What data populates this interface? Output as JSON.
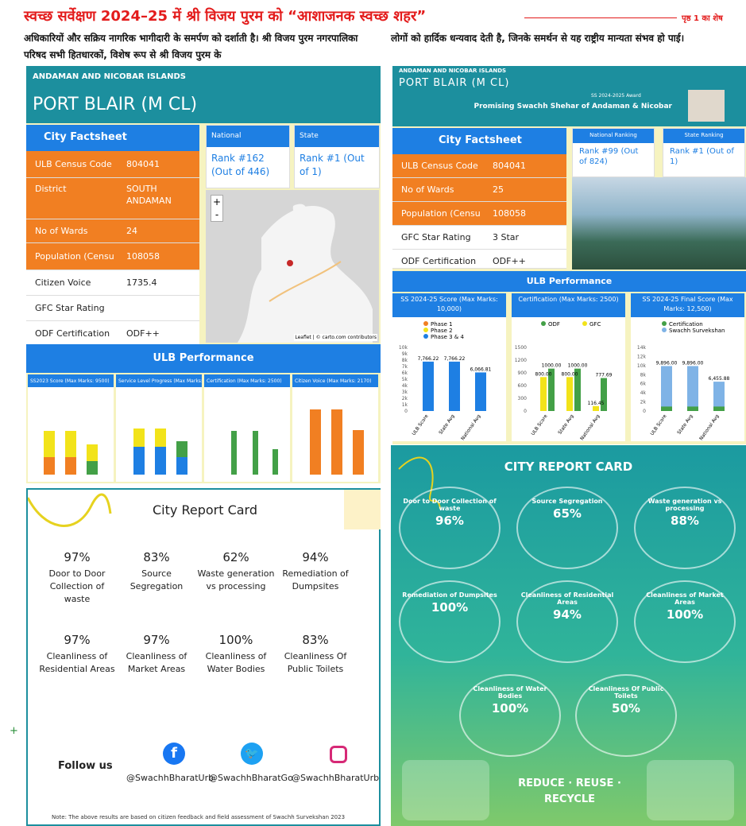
{
  "headline": "स्वच्छ सर्वेक्षण 2024–25 में श्री विजय पुरम को “आशाजनक स्वच्छ शहर”",
  "headline_cont": "पृष्ठ 1 का शेष",
  "col1": "अधिकारियों और सक्रिय नागरिक भागीदारी के समर्पण को दर्शाती है। श्री विजय पुरम नगरपालिका परिषद सभी हितधारकों, विशेष रूप से श्री विजय पुरम के",
  "col2": "लोगों को हार्दिक धन्यवाद देती है, जिनके समर्थन से यह राष्ट्रीय मान्यता संभव हो पाई।",
  "left_card": {
    "state": "ANDAMAN AND NICOBAR ISLANDS",
    "city": "PORT BLAIR (M CL)",
    "factsheet": "City Factsheet",
    "facts": [
      [
        "ULB Census Code",
        "804041"
      ],
      [
        "District",
        "SOUTH ANDAMAN"
      ],
      [
        "No of Wards",
        "24"
      ],
      [
        "Population (Censu",
        "108058"
      ],
      [
        "Citizen Voice",
        "1735.4"
      ],
      [
        "GFC Star Rating",
        ""
      ],
      [
        "ODF Certification",
        "ODF++"
      ]
    ],
    "national_hdr": "National",
    "national_rank": "Rank #162 (Out of 446)",
    "state_hdr": "State",
    "state_rank": "Rank #1 (Out of 1)",
    "map_credit": "Leaflet | © carto.com contributors",
    "ulb": "ULB Performance",
    "mini_titles": [
      "SS2023 Score (Max Marks: 9500)",
      "Service Level Progress (Max Marks: 4830)",
      "Certification (Max Marks: 2500)",
      "Citizen Voice (Max Marks: 2170)"
    ]
  },
  "right_card": {
    "state": "ANDAMAN AND NICOBAR ISLANDS",
    "city": "PORT BLAIR (M CL)",
    "award_small": "SS 2024-2025 Award",
    "award": "Promising Swachh Shehar of Andaman & Nicobar",
    "factsheet": "City Factsheet",
    "facts": [
      [
        "ULB Census Code",
        "804041"
      ],
      [
        "No of Wards",
        "25"
      ],
      [
        "Population (Censu",
        "108058"
      ],
      [
        "GFC Star Rating",
        "3 Star"
      ],
      [
        "ODF Certification",
        "ODF++"
      ]
    ],
    "national_hdr": "National Ranking",
    "national_rank": "Rank #99 (Out of 824)",
    "state_hdr": "State Ranking",
    "state_rank": "Rank #1 (Out of 1)",
    "ulb": "ULB Performance",
    "charts": [
      {
        "title": "SS 2024-25 Score (Max Marks: 10,000)",
        "legend": [
          "Phase 1",
          "Phase 2",
          "Phase 3 & 4"
        ],
        "cats": [
          "ULB Score",
          "State Avg",
          "National Avg"
        ],
        "labels": [
          "7,766.22",
          "7,766.22",
          "6,066.81"
        ],
        "values": [
          7766.22,
          7766.22,
          6066.81
        ],
        "ymax": 10000,
        "yticks": [
          "10k",
          "9k",
          "8k",
          "7k",
          "6k",
          "5k",
          "4k",
          "3k",
          "2k",
          "1k",
          "0"
        ]
      },
      {
        "title": "Certification (Max Marks: 2500)",
        "legend": [
          "ODF",
          "GFC"
        ],
        "cats": [
          "ULB Score",
          "State Avg",
          "National Avg"
        ],
        "labels": [
          "800.00",
          "1000.00",
          "800.00",
          "1000.00",
          "116.45",
          "777.69"
        ],
        "ymax": 1500,
        "yticks": [
          "1500",
          "1200",
          "900",
          "600",
          "300",
          "0"
        ]
      },
      {
        "title": "SS 2024-25 Final Score (Max Marks: 12,500)",
        "legend": [
          "Certification",
          "Swachh Survekshan"
        ],
        "cats": [
          "ULB Score",
          "State Avg",
          "National Avg"
        ],
        "labels": [
          "9,896.00",
          "9,896.00",
          "6,455.88"
        ],
        "values": [
          9896,
          9896,
          6455.88
        ],
        "ymax": 14000,
        "yticks": [
          "14k",
          "12k",
          "10k",
          "8k",
          "6k",
          "4k",
          "2k",
          "0"
        ]
      }
    ]
  },
  "left_report": {
    "title": "City Report Card",
    "items": [
      [
        "97%",
        "Door to Door Collection of waste"
      ],
      [
        "83%",
        "Source Segregation"
      ],
      [
        "62%",
        "Waste generation vs processing"
      ],
      [
        "94%",
        "Remediation of Dumpsites"
      ],
      [
        "97%",
        "Cleanliness of Residential Areas"
      ],
      [
        "97%",
        "Cleanliness of Market Areas"
      ],
      [
        "100%",
        "Cleanliness of Water Bodies"
      ],
      [
        "83%",
        "Cleanliness Of Public Toilets"
      ]
    ],
    "follow": "Follow us",
    "handles": [
      "@SwachhBharatUrb",
      "@SwachhBharatGo",
      "@SwachhBharatUrb"
    ],
    "note": "Note: The above results are based on citizen feedback and field assessment of Swachh Survekshan 2023"
  },
  "right_report": {
    "title": "CITY REPORT CARD",
    "items": [
      [
        "Door to Door Collection of waste",
        "96%"
      ],
      [
        "Source Segregation",
        "65%"
      ],
      [
        "Waste generation vs processing",
        "88%"
      ],
      [
        "Remediation of Dumpsites",
        "100%"
      ],
      [
        "Cleanliness of Residential Areas",
        "94%"
      ],
      [
        "Cleanliness of Market Areas",
        "100%"
      ],
      [
        "Cleanliness of Water Bodies",
        "100%"
      ],
      [
        "Cleanliness Of Public Toilets",
        "50%"
      ]
    ],
    "slogan1": "REDUCE · REUSE ·",
    "slogan2": "RECYCLE"
  }
}
